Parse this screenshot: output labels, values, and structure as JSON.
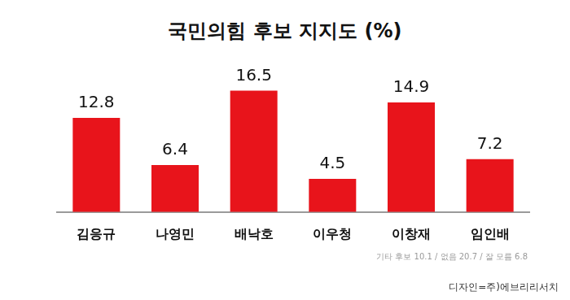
{
  "chart_data": {
    "type": "bar",
    "title": "국민의힘 후보 지지도 (%)",
    "categories": [
      "김응규",
      "나영민",
      "배낙호",
      "이우청",
      "이창재",
      "임인배"
    ],
    "values": [
      12.8,
      6.4,
      16.5,
      4.5,
      14.9,
      7.2
    ],
    "color": "#e8141b",
    "ylim": [
      0,
      18
    ],
    "grid": false,
    "data_labels": true,
    "tick_labels": "x",
    "annotations": [
      "기타 후보 10.1 / 없음 20.7 / 잘 모름 6.8"
    ],
    "footer": "디자인=주)에브리리서치"
  }
}
